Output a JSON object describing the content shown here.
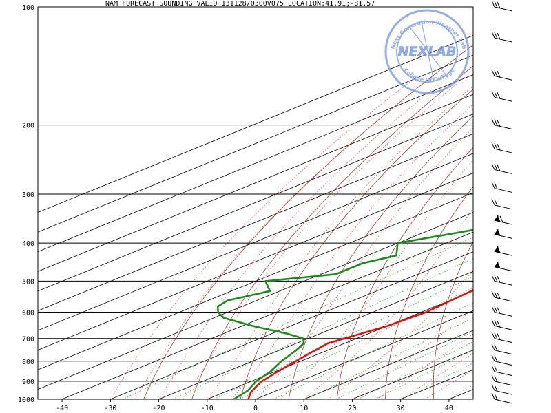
{
  "title": "NAM FORECAST SOUNDING VALID 131128/0300V075   LOCATION:41.91;-81.57",
  "logo": {
    "main": "NEXLAB",
    "ring_top": "Next Generation Weather Lab",
    "ring_bottom": "College Of DuPage"
  },
  "colors": {
    "temperature": "#e01010",
    "dewpoint": "#1a8c1a",
    "dry_adiabat": "#8b2a1a",
    "moist_adiabat": "#e05050",
    "mixing_ratio": "#2f9a2f",
    "logo": "#7f9fe6"
  },
  "chart_data": {
    "type": "line",
    "title": "NAM FORECAST SOUNDING VALID 131128/0300V075   LOCATION:41.91;-81.57",
    "xlabel": "",
    "ylabel": "",
    "xlim": [
      -45,
      45
    ],
    "ylim": [
      1000,
      100
    ],
    "y_scale": "log",
    "grid": true,
    "skew": true,
    "x_ticks": [
      "-40",
      "-30",
      "-20",
      "-10",
      "0",
      "10",
      "20",
      "30",
      "40"
    ],
    "y_ticks": [
      "100",
      "200",
      "300",
      "400",
      "500",
      "600",
      "700",
      "800",
      "900",
      "1000"
    ],
    "series": [
      {
        "key": "temperature",
        "pressure": [
          1000,
          960,
          925,
          900,
          850,
          800,
          760,
          720,
          700,
          650,
          600,
          550,
          500,
          450,
          400,
          360,
          330,
          300,
          270,
          250,
          220,
          200,
          170,
          150,
          130,
          120,
          110,
          100
        ],
        "value": [
          -1.5,
          -4.5,
          -6.5,
          -7.8,
          -9.5,
          -11,
          -12.3,
          -13.5,
          -12.5,
          -10,
          -9,
          -10,
          -11,
          -13,
          -16.5,
          -20,
          -22,
          -24,
          -27,
          -28.5,
          -30,
          -32,
          -35,
          -38,
          -43,
          -45.5,
          -48.5,
          -52
        ]
      },
      {
        "key": "dewpoint",
        "pressure": [
          1000,
          950,
          900,
          850,
          800,
          750,
          720,
          700,
          680,
          650,
          620,
          600,
          580,
          560,
          530,
          500,
          480,
          450,
          430,
          400,
          370,
          350,
          330,
          300,
          270,
          250,
          220,
          200,
          180,
          150,
          130,
          120,
          100
        ],
        "value": [
          -4.5,
          -6,
          -9,
          -11,
          -14,
          -16.5,
          -18.5,
          -21,
          -27,
          -38,
          -48,
          -52,
          -55,
          -56,
          -52,
          -58,
          -47,
          -47,
          -44,
          -50,
          -41,
          -45,
          -40,
          -51,
          -37,
          -39,
          -41,
          -45,
          -49,
          -60,
          -70,
          -72,
          -80
        ]
      }
    ],
    "wind_barbs": [
      {
        "pressure": 100,
        "barbs": 3
      },
      {
        "pressure": 120,
        "barbs": 3
      },
      {
        "pressure": 150,
        "barbs": 3
      },
      {
        "pressure": 170,
        "barbs": 3
      },
      {
        "pressure": 200,
        "barbs": 3
      },
      {
        "pressure": 230,
        "barbs": 3
      },
      {
        "pressure": 260,
        "barbs": 3
      },
      {
        "pressure": 290,
        "barbs": 2
      },
      {
        "pressure": 320,
        "barbs": 2
      },
      {
        "pressure": 350,
        "barbs": 2,
        "pennant": true
      },
      {
        "pressure": 380,
        "barbs": 1,
        "pennant": true
      },
      {
        "pressure": 420,
        "barbs": 1,
        "pennant": true
      },
      {
        "pressure": 460,
        "barbs": 1,
        "pennant": true
      },
      {
        "pressure": 500,
        "barbs": 3
      },
      {
        "pressure": 550,
        "barbs": 3
      },
      {
        "pressure": 600,
        "barbs": 3
      },
      {
        "pressure": 650,
        "barbs": 3
      },
      {
        "pressure": 700,
        "barbs": 3
      },
      {
        "pressure": 750,
        "barbs": 2
      },
      {
        "pressure": 800,
        "barbs": 2
      },
      {
        "pressure": 850,
        "barbs": 2
      },
      {
        "pressure": 900,
        "barbs": 2
      },
      {
        "pressure": 950,
        "barbs": 2
      },
      {
        "pressure": 1000,
        "barbs": 2
      }
    ]
  }
}
